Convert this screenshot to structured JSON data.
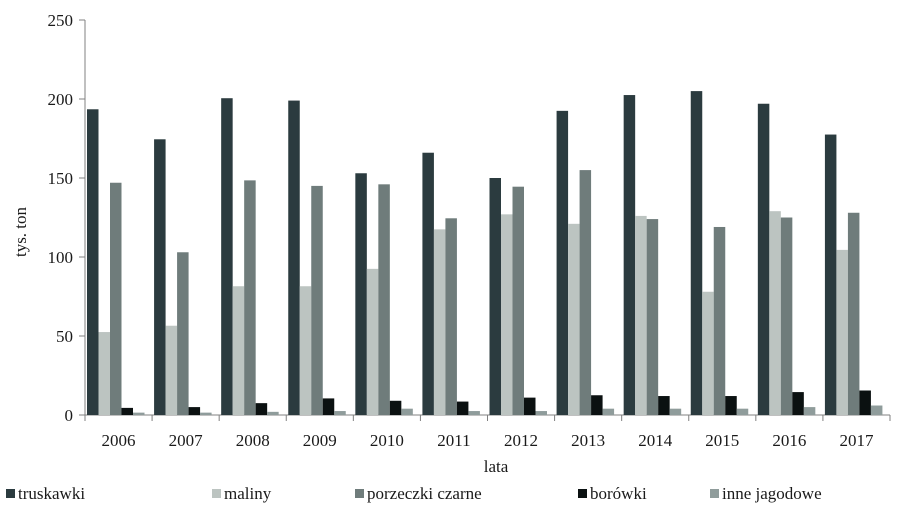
{
  "chart_data": {
    "type": "bar",
    "xlabel": "lata",
    "ylabel": "tys. ton",
    "ylim": [
      0,
      250
    ],
    "yticks": [
      0,
      50,
      100,
      150,
      200,
      250
    ],
    "grid": false,
    "legend_position": "bottom",
    "categories": [
      "2006",
      "2007",
      "2008",
      "2009",
      "2010",
      "2011",
      "2012",
      "2013",
      "2014",
      "2015",
      "2016",
      "2017"
    ],
    "series": [
      {
        "name": "truskawki",
        "color": "#2b3b3f",
        "values": [
          193.5,
          174.5,
          200.5,
          199,
          153,
          166,
          150,
          192.5,
          202.5,
          205,
          197,
          177.5
        ]
      },
      {
        "name": "maliny",
        "color": "#bcc4c1",
        "values": [
          52.5,
          56.5,
          81.5,
          81.5,
          92.5,
          117.5,
          127,
          121,
          126,
          78,
          129,
          104.5
        ]
      },
      {
        "name": "porzeczki czarne",
        "color": "#6f7c7b",
        "values": [
          147,
          103,
          148.5,
          145,
          146,
          124.5,
          144.5,
          155,
          124,
          119,
          125,
          128
        ]
      },
      {
        "name": "borówki",
        "color": "#0b1111",
        "values": [
          4.5,
          5,
          7.5,
          10.5,
          9,
          8.5,
          11,
          12.5,
          12,
          12,
          14.5,
          15.5
        ]
      },
      {
        "name": "inne jagodowe",
        "color": "#8f9c9b",
        "values": [
          1.5,
          1.5,
          2,
          2.5,
          4,
          2.5,
          2.5,
          4,
          4,
          4,
          5,
          6
        ]
      }
    ]
  }
}
